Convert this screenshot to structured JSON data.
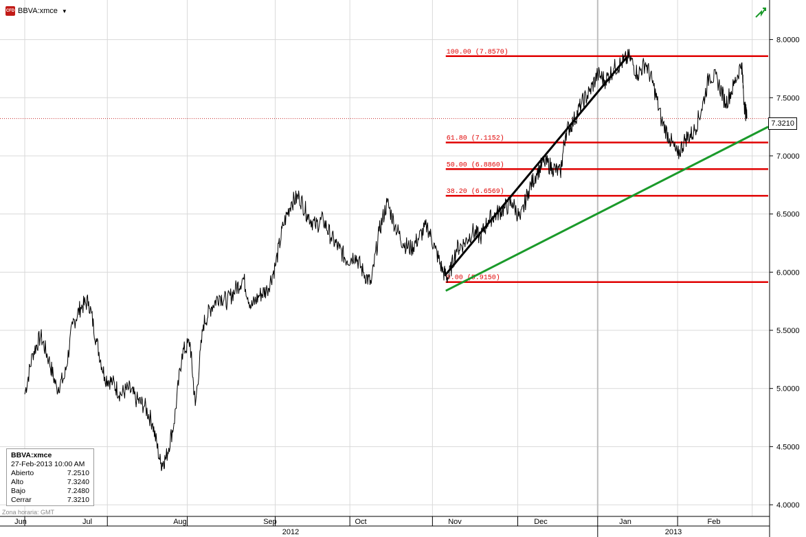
{
  "header": {
    "symbol": "BBVA:xmce",
    "badge": "CFD"
  },
  "last_price_label": "7.3210",
  "info_box": {
    "title": "BBVA:xmce",
    "datetime": "27-Feb-2013 10:00 AM",
    "rows": [
      {
        "label": "Abierto",
        "value": "7.2510"
      },
      {
        "label": "Alto",
        "value": "7.3240"
      },
      {
        "label": "Bajo",
        "value": "7.2480"
      },
      {
        "label": "Cerrar",
        "value": "7.3210"
      }
    ]
  },
  "timezone_label": "Zona horaria: GMT",
  "colors": {
    "price": "#000000",
    "fib": "#e00000",
    "trend_up": "#000000",
    "support": "#1a9a2a",
    "grid": "#d9d9d9"
  },
  "chart_data": {
    "type": "line",
    "y_axis": {
      "ticks": [
        "8.0000",
        "7.5000",
        "7.0000",
        "6.5000",
        "6.0000",
        "5.5000",
        "5.0000",
        "4.5000",
        "4.0000"
      ],
      "ylim": [
        3.9,
        8.34
      ],
      "position": "right"
    },
    "x_axis": {
      "month_labels": [
        "Jun",
        "Jul",
        "Aug",
        "Sep",
        "Oct",
        "Nov",
        "Dec",
        "Jan",
        "Feb"
      ],
      "year_labels": [
        "2012",
        "2013"
      ]
    },
    "series": [
      {
        "values": [
          [
            "2012-06-01",
            4.95
          ],
          [
            "2012-06-04",
            5.3
          ],
          [
            "2012-06-07",
            5.45
          ],
          [
            "2012-06-10",
            5.25
          ],
          [
            "2012-06-13",
            5.0
          ],
          [
            "2012-06-16",
            5.1
          ],
          [
            "2012-06-19",
            5.55
          ],
          [
            "2012-06-22",
            5.7
          ],
          [
            "2012-06-25",
            5.75
          ],
          [
            "2012-06-28",
            5.4
          ],
          [
            "2012-07-01",
            5.1
          ],
          [
            "2012-07-04",
            5.05
          ],
          [
            "2012-07-07",
            4.95
          ],
          [
            "2012-07-10",
            5.0
          ],
          [
            "2012-07-13",
            4.9
          ],
          [
            "2012-07-16",
            4.85
          ],
          [
            "2012-07-19",
            4.7
          ],
          [
            "2012-07-22",
            4.35
          ],
          [
            "2012-07-24",
            4.4
          ],
          [
            "2012-07-27",
            4.7
          ],
          [
            "2012-07-30",
            5.3
          ],
          [
            "2012-08-02",
            5.4
          ],
          [
            "2012-08-04",
            4.85
          ],
          [
            "2012-08-07",
            5.55
          ],
          [
            "2012-08-10",
            5.7
          ],
          [
            "2012-08-13",
            5.8
          ],
          [
            "2012-08-16",
            5.75
          ],
          [
            "2012-08-19",
            5.85
          ],
          [
            "2012-08-22",
            5.95
          ],
          [
            "2012-08-25",
            5.7
          ],
          [
            "2012-08-28",
            5.8
          ],
          [
            "2012-08-31",
            5.85
          ],
          [
            "2012-09-03",
            6.05
          ],
          [
            "2012-09-06",
            6.4
          ],
          [
            "2012-09-09",
            6.6
          ],
          [
            "2012-09-12",
            6.65
          ],
          [
            "2012-09-15",
            6.5
          ],
          [
            "2012-09-18",
            6.4
          ],
          [
            "2012-09-21",
            6.45
          ],
          [
            "2012-09-24",
            6.3
          ],
          [
            "2012-09-27",
            6.2
          ],
          [
            "2012-09-30",
            6.1
          ],
          [
            "2012-10-03",
            6.15
          ],
          [
            "2012-10-06",
            6.0
          ],
          [
            "2012-10-09",
            5.9
          ],
          [
            "2012-10-12",
            6.35
          ],
          [
            "2012-10-15",
            6.6
          ],
          [
            "2012-10-18",
            6.4
          ],
          [
            "2012-10-21",
            6.25
          ],
          [
            "2012-10-24",
            6.2
          ],
          [
            "2012-10-27",
            6.3
          ],
          [
            "2012-10-30",
            6.4
          ],
          [
            "2012-11-02",
            6.2
          ],
          [
            "2012-11-05",
            6.0
          ],
          [
            "2012-11-07",
            5.95
          ],
          [
            "2012-11-10",
            6.2
          ],
          [
            "2012-11-13",
            6.25
          ],
          [
            "2012-11-16",
            6.35
          ],
          [
            "2012-11-19",
            6.3
          ],
          [
            "2012-11-22",
            6.45
          ],
          [
            "2012-11-25",
            6.5
          ],
          [
            "2012-11-28",
            6.55
          ],
          [
            "2012-12-01",
            6.6
          ],
          [
            "2012-12-04",
            6.45
          ],
          [
            "2012-12-07",
            6.7
          ],
          [
            "2012-12-10",
            6.85
          ],
          [
            "2012-12-13",
            6.95
          ],
          [
            "2012-12-16",
            6.9
          ],
          [
            "2012-12-19",
            6.85
          ],
          [
            "2012-12-21",
            7.2
          ],
          [
            "2012-12-24",
            7.3
          ],
          [
            "2012-12-27",
            7.45
          ],
          [
            "2012-12-30",
            7.55
          ],
          [
            "2013-01-02",
            7.7
          ],
          [
            "2013-01-05",
            7.65
          ],
          [
            "2013-01-08",
            7.75
          ],
          [
            "2013-01-11",
            7.8
          ],
          [
            "2013-01-14",
            7.85
          ],
          [
            "2013-01-17",
            7.7
          ],
          [
            "2013-01-20",
            7.8
          ],
          [
            "2013-01-23",
            7.6
          ],
          [
            "2013-01-26",
            7.3
          ],
          [
            "2013-01-29",
            7.15
          ],
          [
            "2013-02-01",
            7.0
          ],
          [
            "2013-02-04",
            7.15
          ],
          [
            "2013-02-07",
            7.2
          ],
          [
            "2013-02-10",
            7.4
          ],
          [
            "2013-02-13",
            7.7
          ],
          [
            "2013-02-16",
            7.65
          ],
          [
            "2013-02-19",
            7.45
          ],
          [
            "2013-02-22",
            7.6
          ],
          [
            "2013-02-25",
            7.8
          ],
          [
            "2013-02-26",
            7.45
          ],
          [
            "2013-02-27",
            7.32
          ]
        ]
      }
    ],
    "last_value": 7.321,
    "fibonacci_levels": [
      {
        "label": "100.00 (7.8570)",
        "value": 7.857
      },
      {
        "label": "61.80 (7.1152)",
        "value": 7.1152
      },
      {
        "label": "50.00 (6.8860)",
        "value": 6.886
      },
      {
        "label": "38.20 (6.6569)",
        "value": 6.6569
      },
      {
        "label": "0.00 (5.9150)",
        "value": 5.915
      }
    ],
    "fib_x_range": [
      "2012-11-06",
      "2013-03-07"
    ],
    "trendlines": [
      {
        "name": "uptrend",
        "from": [
          "2012-11-06",
          5.98
        ],
        "to": [
          "2013-01-13",
          7.85
        ]
      },
      {
        "name": "support",
        "from": [
          "2012-11-06",
          5.84
        ],
        "to": [
          "2013-03-07",
          7.25
        ]
      }
    ],
    "grid": true
  }
}
